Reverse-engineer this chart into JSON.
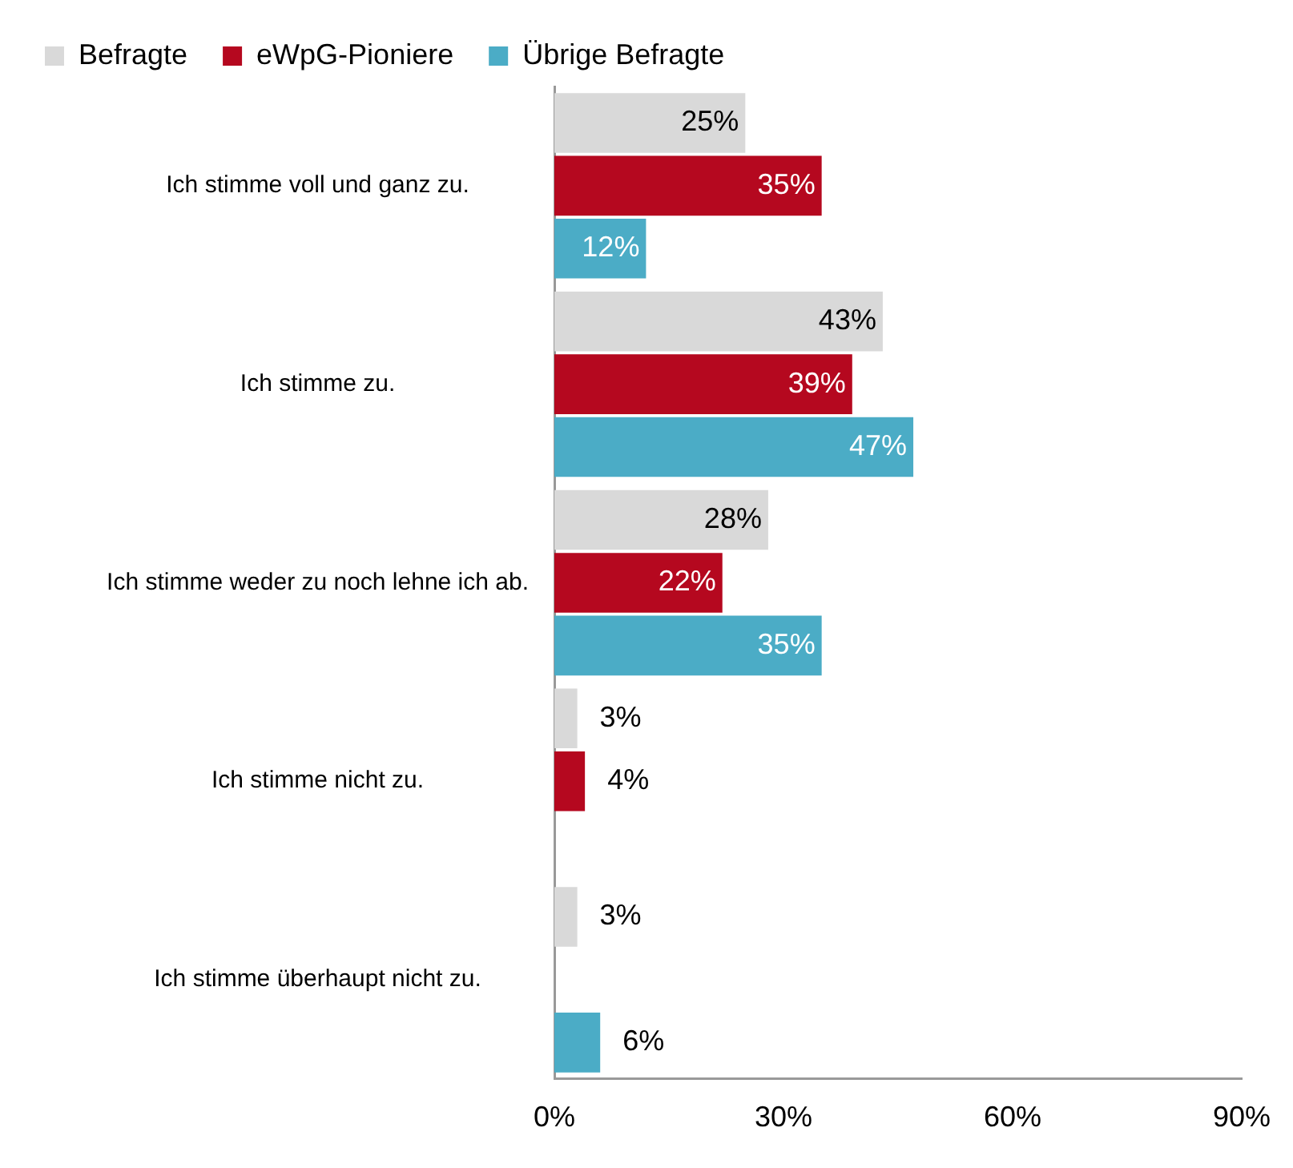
{
  "chart_data": {
    "type": "bar",
    "orientation": "horizontal",
    "categories": [
      "Ich stimme voll und ganz zu.",
      "Ich stimme zu.",
      "Ich stimme weder zu noch lehne ich ab.",
      "Ich stimme nicht zu.",
      "Ich stimme überhaupt nicht zu."
    ],
    "series": [
      {
        "name": "Befragte",
        "color": "#d9d9d9",
        "values": [
          25,
          43,
          28,
          3,
          3
        ]
      },
      {
        "name": "eWpG-Pioniere",
        "color": "#b5081f",
        "values": [
          35,
          39,
          22,
          4,
          null
        ]
      },
      {
        "name": "Übrige Befragte",
        "color": "#4bacc6",
        "values": [
          12,
          47,
          35,
          null,
          6
        ]
      }
    ],
    "value_labels": [
      [
        "25%",
        "43%",
        "28%",
        "3%",
        "3%"
      ],
      [
        "35%",
        "39%",
        "22%",
        "4%",
        null
      ],
      [
        "12%",
        "47%",
        "35%",
        null,
        "6%"
      ]
    ],
    "xlim": [
      0,
      90
    ],
    "xticks": [
      {
        "value": 0,
        "label": "0%"
      },
      {
        "value": 30,
        "label": "30%"
      },
      {
        "value": 60,
        "label": "60%"
      },
      {
        "value": 90,
        "label": "90%"
      }
    ],
    "grid": false,
    "legend": "top"
  }
}
